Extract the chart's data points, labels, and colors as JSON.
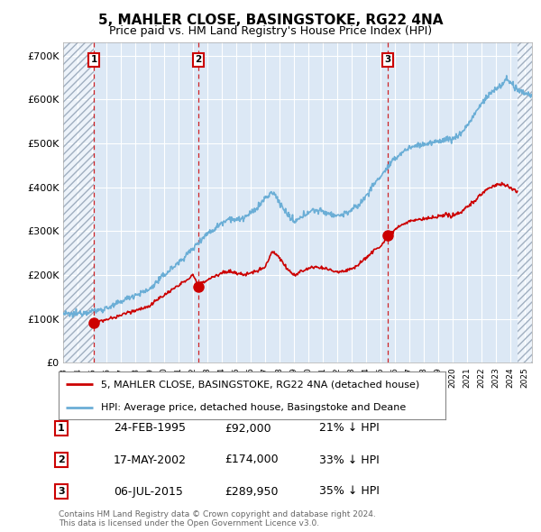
{
  "title": "5, MAHLER CLOSE, BASINGSTOKE, RG22 4NA",
  "subtitle": "Price paid vs. HM Land Registry's House Price Index (HPI)",
  "background_color": "#ffffff",
  "plot_bg_color": "#dce8f5",
  "grid_color": "#ffffff",
  "transactions": [
    {
      "num": 1,
      "date_str": "24-FEB-1995",
      "date_x": 1995.12,
      "price": 92000,
      "hpi_pct": "21% ↓ HPI"
    },
    {
      "num": 2,
      "date_str": "17-MAY-2002",
      "date_x": 2002.37,
      "price": 174000,
      "hpi_pct": "33% ↓ HPI"
    },
    {
      "num": 3,
      "date_str": "06-JUL-2015",
      "date_x": 2015.51,
      "price": 289950,
      "hpi_pct": "35% ↓ HPI"
    }
  ],
  "yticks": [
    0,
    100000,
    200000,
    300000,
    400000,
    500000,
    600000,
    700000
  ],
  "ytick_labels": [
    "£0",
    "£100K",
    "£200K",
    "£300K",
    "£400K",
    "£500K",
    "£600K",
    "£700K"
  ],
  "xlim": [
    1993.0,
    2025.5
  ],
  "ylim": [
    0,
    730000
  ],
  "hpi_color": "#6baed6",
  "price_color": "#cc0000",
  "legend_hpi_label": "HPI: Average price, detached house, Basingstoke and Deane",
  "legend_price_label": "5, MAHLER CLOSE, BASINGSTOKE, RG22 4NA (detached house)",
  "footer": "Contains HM Land Registry data © Crown copyright and database right 2024.\nThis data is licensed under the Open Government Licence v3.0."
}
